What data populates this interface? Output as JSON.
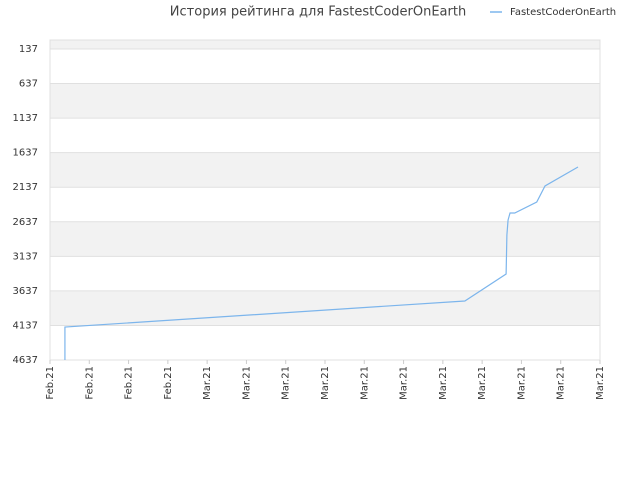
{
  "chart_data": {
    "type": "line",
    "title": "История рейтинга для FastestCoderOnEarth",
    "legend": "top-right",
    "series": [
      {
        "name": "FastestCoderOnEarth",
        "color": "#7cb5ec",
        "x": [
          0.38,
          0.38,
          10.56,
          11.61,
          11.63,
          11.66,
          11.71,
          11.83,
          12.39,
          12.6,
          13.44
        ],
        "values": [
          4637,
          4160,
          3783,
          3393,
          2828,
          2611,
          2510,
          2510,
          2351,
          2119,
          1844
        ]
      }
    ],
    "xlim": [
      0,
      14
    ],
    "xticks": [
      {
        "value": 0,
        "label": "Feb.21"
      },
      {
        "value": 1,
        "label": "Feb.21"
      },
      {
        "value": 2,
        "label": "Feb.21"
      },
      {
        "value": 3,
        "label": "Feb.21"
      },
      {
        "value": 4,
        "label": "Mar.21"
      },
      {
        "value": 5,
        "label": "Mar.21"
      },
      {
        "value": 6,
        "label": "Mar.21"
      },
      {
        "value": 7,
        "label": "Mar.21"
      },
      {
        "value": 8,
        "label": "Mar.21"
      },
      {
        "value": 9,
        "label": "Mar.21"
      },
      {
        "value": 10,
        "label": "Mar.21"
      },
      {
        "value": 11,
        "label": "Mar.21"
      },
      {
        "value": 12,
        "label": "Mar.21"
      },
      {
        "value": 13,
        "label": "Mar.21"
      },
      {
        "value": 14,
        "label": "Mar.21"
      }
    ],
    "ylim": [
      4637,
      7
    ],
    "yticks": [
      137,
      637,
      1137,
      1637,
      2137,
      2637,
      3137,
      3637,
      4137,
      4637
    ],
    "grid": true
  }
}
